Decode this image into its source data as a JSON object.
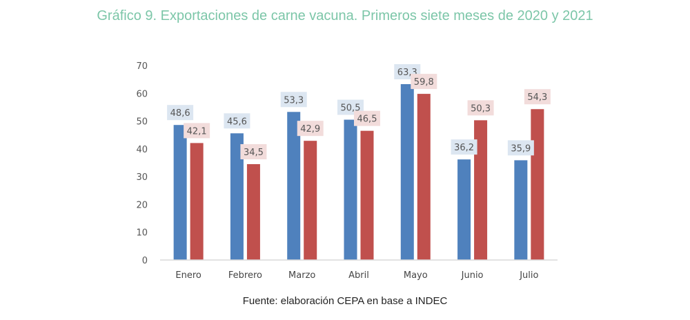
{
  "title": "Gráfico 9. Exportaciones de carne vacuna. Primeros siete meses de 2020 y 2021",
  "source": "Fuente: elaboración CEPA en base a INDEC",
  "colors": {
    "series_2020": "#4f81bd",
    "series_2021": "#c0504d",
    "label_bg_2020": "#dce6f1",
    "label_bg_2021": "#f2dcdb",
    "axis": "#d9d9d9"
  },
  "chart_data": {
    "type": "bar",
    "categories": [
      "Enero",
      "Febrero",
      "Marzo",
      "Abril",
      "Mayo",
      "Junio",
      "Julio"
    ],
    "series": [
      {
        "values": [
          48.6,
          45.6,
          53.3,
          50.5,
          63.3,
          36.2,
          35.9
        ],
        "labels": [
          "48,6",
          "45,6",
          "53,3",
          "50,5",
          "63,3",
          "36,2",
          "35,9"
        ]
      },
      {
        "values": [
          42.1,
          34.5,
          42.9,
          46.5,
          59.8,
          50.3,
          54.3
        ],
        "labels": [
          "42,1",
          "34,5",
          "42,9",
          "46,5",
          "59,8",
          "50,3",
          "54,3"
        ]
      }
    ],
    "yticks": [
      "0",
      "10",
      "20",
      "30",
      "40",
      "50",
      "60",
      "70"
    ],
    "ylim": [
      0,
      70
    ],
    "grid": false,
    "legend": "none"
  }
}
